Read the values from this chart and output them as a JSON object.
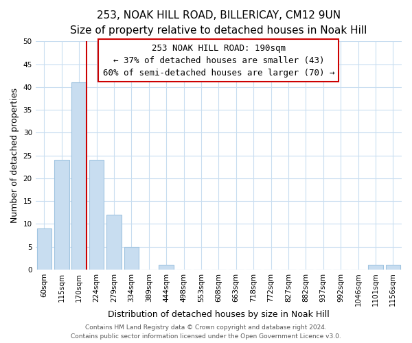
{
  "title": "253, NOAK HILL ROAD, BILLERICAY, CM12 9UN",
  "subtitle": "Size of property relative to detached houses in Noak Hill",
  "xlabel": "Distribution of detached houses by size in Noak Hill",
  "ylabel": "Number of detached properties",
  "bar_labels": [
    "60sqm",
    "115sqm",
    "170sqm",
    "224sqm",
    "279sqm",
    "334sqm",
    "389sqm",
    "444sqm",
    "498sqm",
    "553sqm",
    "608sqm",
    "663sqm",
    "718sqm",
    "772sqm",
    "827sqm",
    "882sqm",
    "937sqm",
    "992sqm",
    "1046sqm",
    "1101sqm",
    "1156sqm"
  ],
  "bar_values": [
    9,
    24,
    41,
    24,
    12,
    5,
    0,
    1,
    0,
    0,
    0,
    0,
    0,
    0,
    0,
    0,
    0,
    0,
    0,
    1,
    1
  ],
  "bar_color": "#c8ddf0",
  "bar_edge_color": "#a0c4e0",
  "vline_color": "#cc0000",
  "vline_x_index": 2.5,
  "ylim": [
    0,
    50
  ],
  "yticks": [
    0,
    5,
    10,
    15,
    20,
    25,
    30,
    35,
    40,
    45,
    50
  ],
  "annotation_title": "253 NOAK HILL ROAD: 190sqm",
  "annotation_line1": "← 37% of detached houses are smaller (43)",
  "annotation_line2": "60% of semi-detached houses are larger (70) →",
  "annotation_box_color": "#ffffff",
  "annotation_box_edgecolor": "#cc0000",
  "footer_line1": "Contains HM Land Registry data © Crown copyright and database right 2024.",
  "footer_line2": "Contains public sector information licensed under the Open Government Licence v3.0.",
  "background_color": "#ffffff",
  "grid_color": "#c8ddf0",
  "title_fontsize": 11,
  "subtitle_fontsize": 9.5,
  "axis_label_fontsize": 9,
  "tick_fontsize": 7.5,
  "annotation_fontsize": 9,
  "footer_fontsize": 6.5
}
